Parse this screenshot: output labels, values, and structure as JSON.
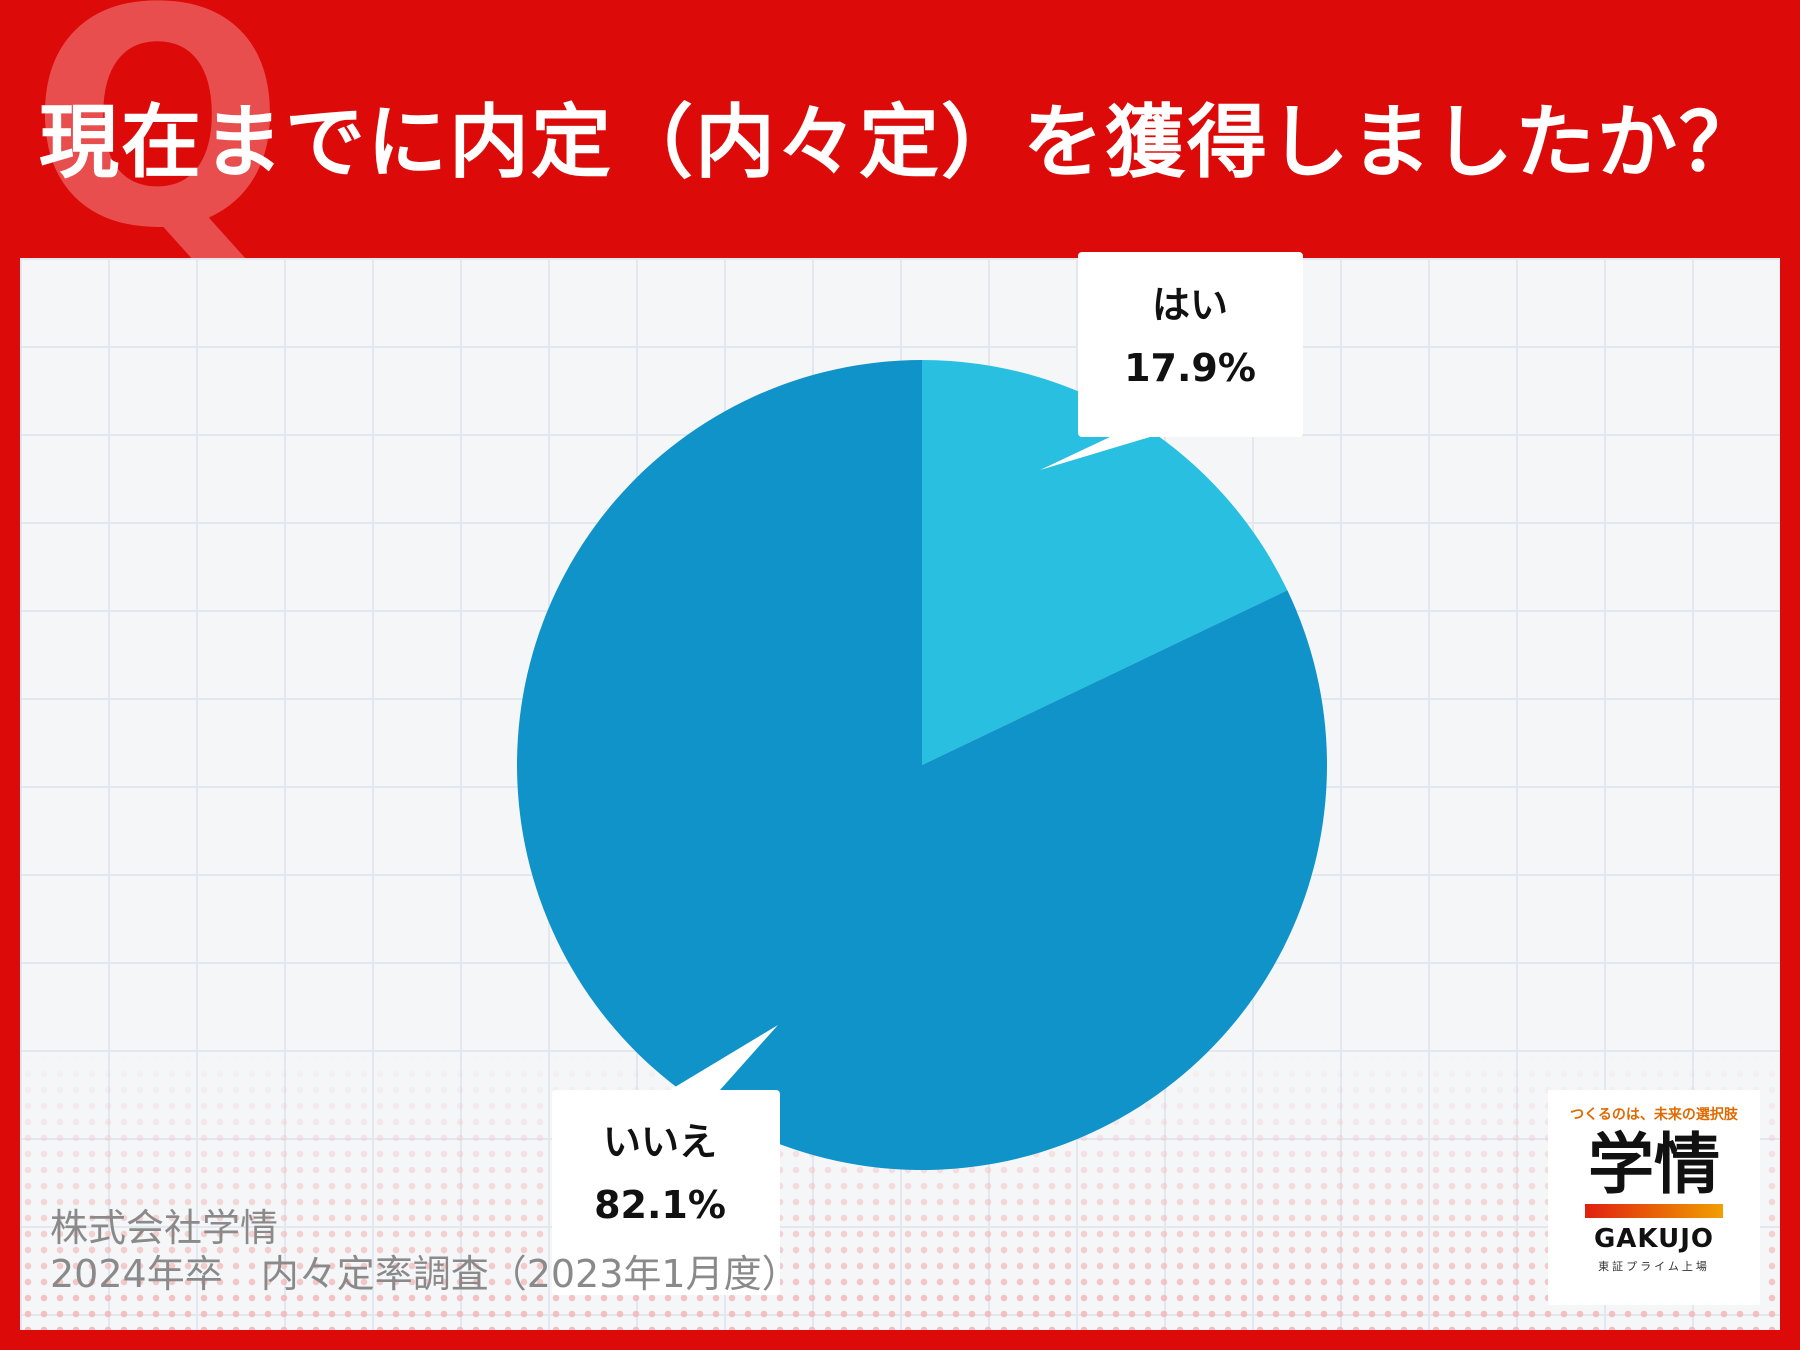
{
  "header": {
    "q_letter": "Q",
    "title": "現在までに内定（内々定）を獲得しましたか？"
  },
  "chart_data": {
    "type": "pie",
    "slices": [
      {
        "label": "はい",
        "value": 17.9,
        "value_label": "17.9%",
        "color": "#29bfe0"
      },
      {
        "label": "いいえ",
        "value": 82.1,
        "value_label": "82.1%",
        "color": "#0f93c9"
      }
    ],
    "start_angle": "12 o'clock",
    "direction": "clockwise"
  },
  "source": {
    "line1": "株式会社学情",
    "line2": "2024年卒　内々定率調査（2023年1月度）"
  },
  "logo": {
    "tagline": "つくるのは、未来の選択肢",
    "name": "学情",
    "name_en": "GAKUJO",
    "subtitle": "東証プライム上場"
  },
  "colors": {
    "background": "#dd0a0a",
    "panel": "#f5f6f8"
  }
}
